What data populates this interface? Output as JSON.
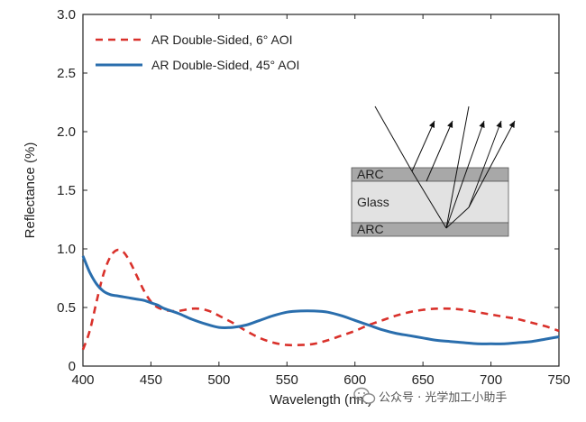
{
  "chart_data": {
    "type": "line",
    "xlabel": "Wavelength (nm)",
    "ylabel": "Reflectance (%)",
    "xlim": [
      400,
      750
    ],
    "ylim": [
      0,
      3.0
    ],
    "xticks": [
      400,
      450,
      500,
      550,
      600,
      650,
      700,
      750
    ],
    "yticks": [
      0,
      0.5,
      1.0,
      1.5,
      2.0,
      2.5,
      3.0
    ],
    "ytick_labels": [
      "0",
      "0.5",
      "1.0",
      "1.5",
      "2.0",
      "2.5",
      "3.0"
    ],
    "legend_position": "top-left",
    "series": [
      {
        "name": "AR Double-Sided, 6° AOI",
        "style": "dashed",
        "color": "#d9312b",
        "x": [
          400,
          405,
          410,
          415,
          420,
          425,
          430,
          435,
          440,
          445,
          450,
          455,
          460,
          465,
          470,
          475,
          480,
          485,
          490,
          495,
          500,
          510,
          520,
          530,
          540,
          550,
          560,
          570,
          580,
          590,
          600,
          610,
          620,
          630,
          640,
          650,
          660,
          670,
          680,
          690,
          700,
          710,
          720,
          730,
          740,
          750
        ],
        "y": [
          0.14,
          0.3,
          0.55,
          0.78,
          0.93,
          0.99,
          0.97,
          0.88,
          0.76,
          0.64,
          0.55,
          0.5,
          0.48,
          0.47,
          0.47,
          0.48,
          0.49,
          0.49,
          0.48,
          0.46,
          0.43,
          0.37,
          0.3,
          0.24,
          0.2,
          0.18,
          0.18,
          0.19,
          0.22,
          0.26,
          0.3,
          0.35,
          0.39,
          0.43,
          0.46,
          0.48,
          0.49,
          0.49,
          0.48,
          0.46,
          0.44,
          0.42,
          0.4,
          0.37,
          0.34,
          0.3
        ]
      },
      {
        "name": "AR Double-Sided, 45° AOI",
        "style": "solid",
        "color": "#2a6ead",
        "x": [
          400,
          405,
          410,
          415,
          420,
          425,
          430,
          435,
          440,
          445,
          450,
          455,
          460,
          470,
          480,
          490,
          500,
          510,
          520,
          530,
          540,
          550,
          560,
          570,
          580,
          590,
          600,
          610,
          620,
          630,
          640,
          650,
          660,
          670,
          680,
          690,
          700,
          710,
          720,
          730,
          740,
          750
        ],
        "y": [
          0.94,
          0.8,
          0.7,
          0.64,
          0.61,
          0.6,
          0.59,
          0.58,
          0.57,
          0.56,
          0.54,
          0.52,
          0.49,
          0.45,
          0.4,
          0.36,
          0.33,
          0.33,
          0.35,
          0.39,
          0.43,
          0.46,
          0.47,
          0.47,
          0.46,
          0.43,
          0.39,
          0.35,
          0.31,
          0.28,
          0.26,
          0.24,
          0.22,
          0.21,
          0.2,
          0.19,
          0.19,
          0.19,
          0.2,
          0.21,
          0.23,
          0.25
        ]
      }
    ],
    "inset": {
      "layers": [
        "ARC",
        "Glass",
        "ARC"
      ]
    }
  },
  "watermark": "公众号 · 光学加工小助手",
  "colors": {
    "arc_layer": "#a8a8a8",
    "glass_layer": "#e2e2e2",
    "axis": "#222222"
  }
}
